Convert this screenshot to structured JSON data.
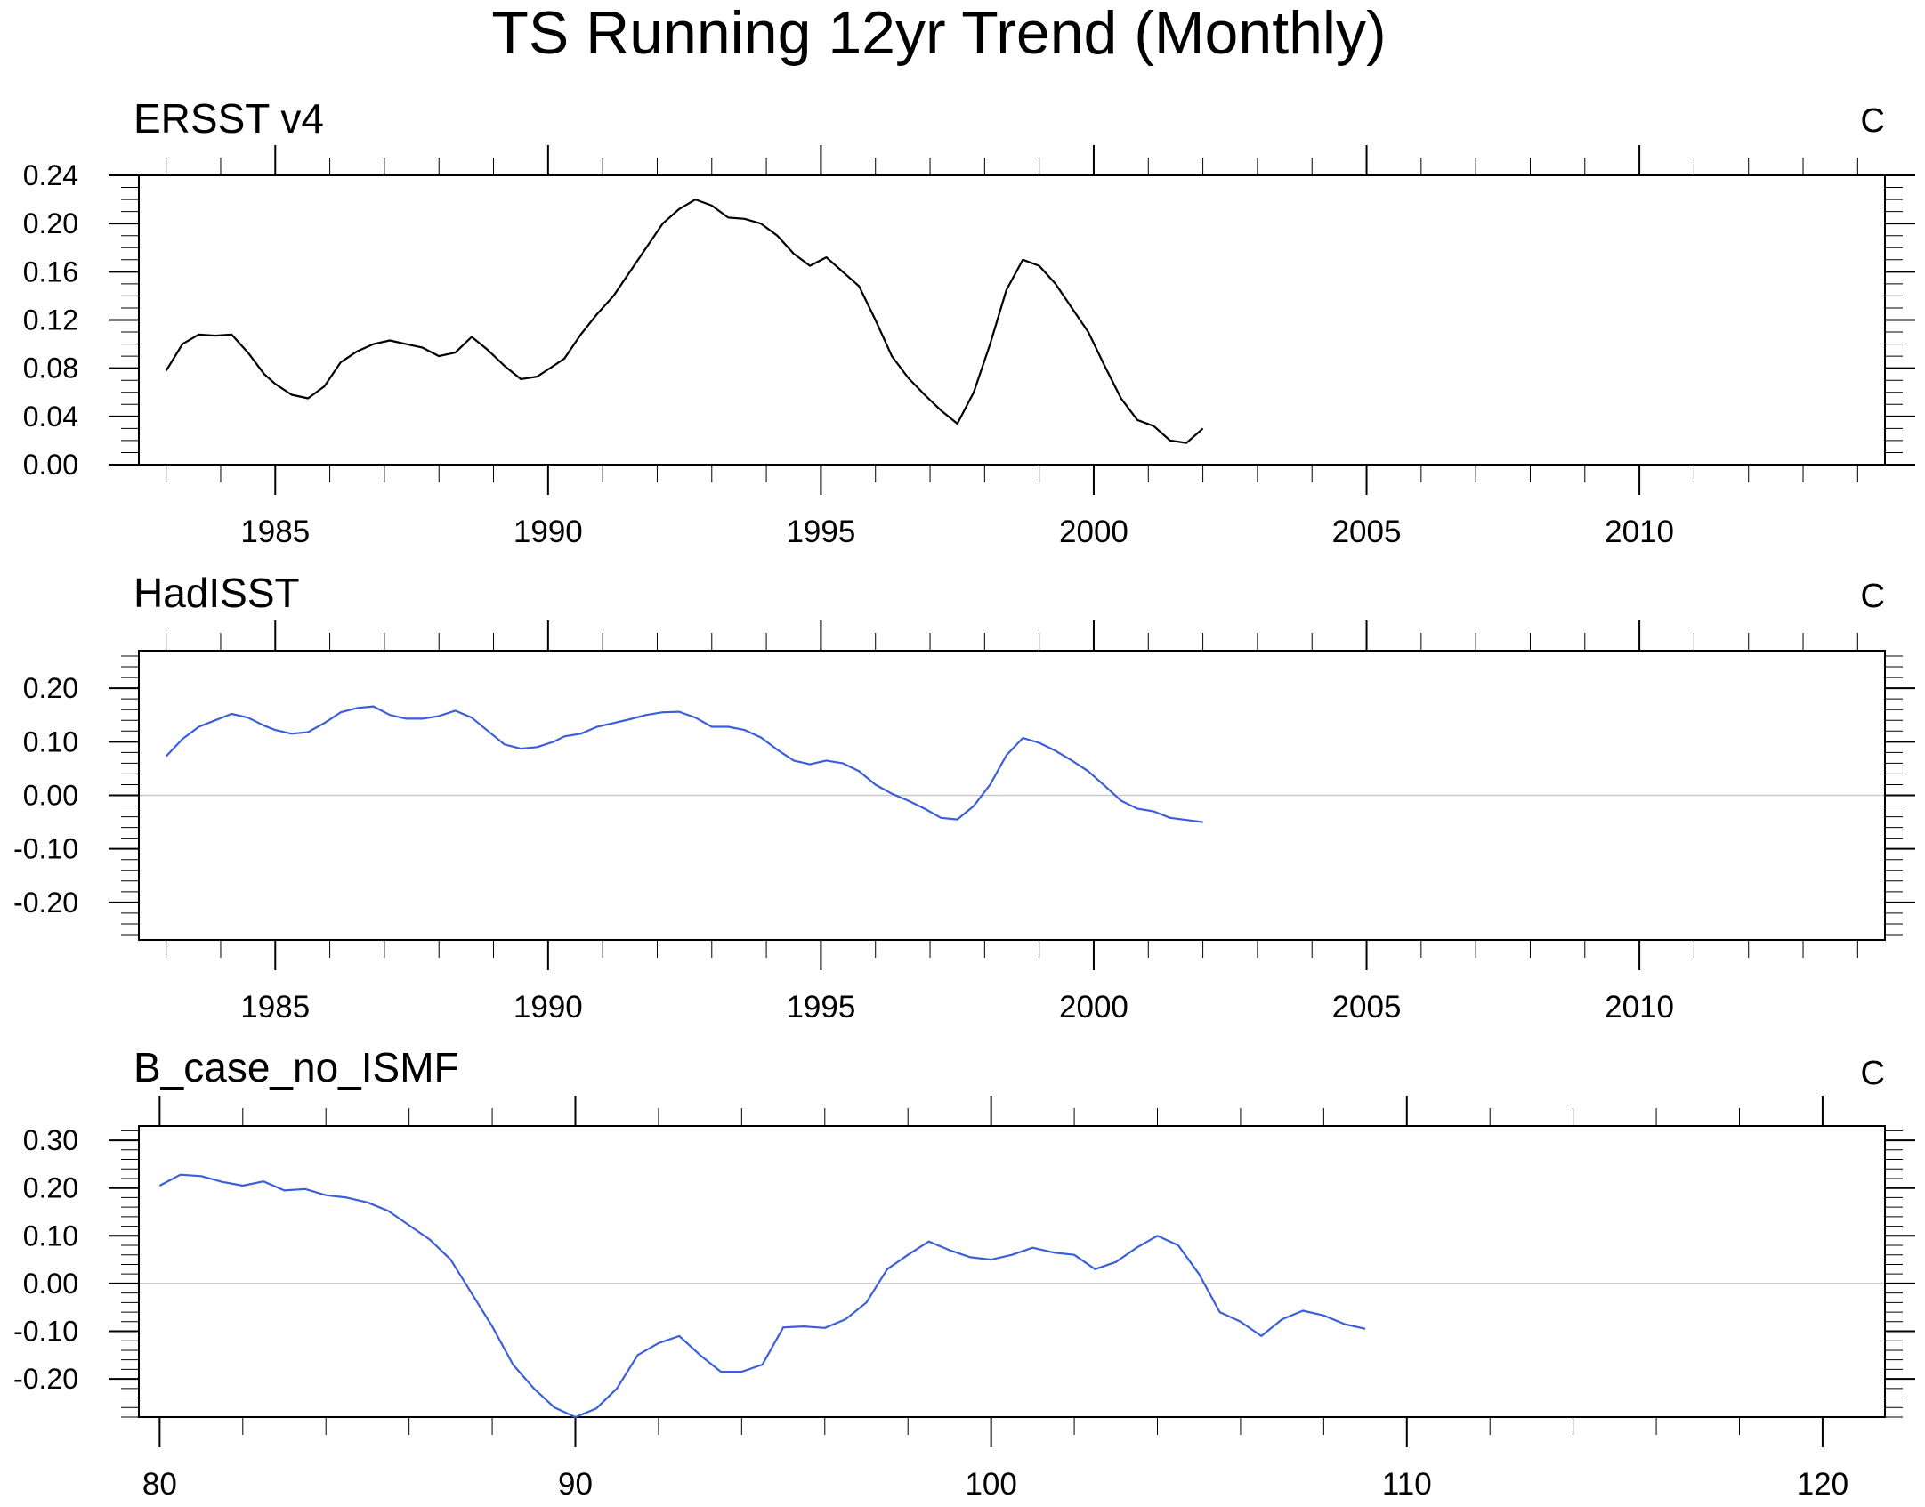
{
  "title": "TS Running 12yr Trend (Monthly)",
  "chart_data": [
    {
      "type": "line",
      "title": "ERSST v4",
      "units": "C",
      "line_color": "#000000",
      "xlim": [
        1982.5,
        2014.5
      ],
      "ylim": [
        0.0,
        0.24
      ],
      "x_ticks": [
        1985,
        1990,
        1995,
        2000,
        2005,
        2010
      ],
      "x_tick_labels": [
        "1985",
        "1990",
        "1995",
        "2000",
        "2005",
        "2010"
      ],
      "x_minor_step": 1,
      "y_ticks": [
        0.0,
        0.04,
        0.08,
        0.12,
        0.16,
        0.2,
        0.24
      ],
      "y_tick_labels": [
        "0.00",
        "0.04",
        "0.08",
        "0.12",
        "0.16",
        "0.20",
        "0.24"
      ],
      "y_minor_step": 0.01,
      "zero_line": false,
      "series": [
        {
          "x": [
            1983.0,
            1983.3,
            1983.6,
            1983.9,
            1984.2,
            1984.5,
            1984.8,
            1985.0,
            1985.3,
            1985.6,
            1985.9,
            1986.2,
            1986.5,
            1986.8,
            1987.1,
            1987.4,
            1987.7,
            1988.0,
            1988.3,
            1988.6,
            1988.9,
            1989.2,
            1989.5,
            1989.8,
            1990.1,
            1990.3,
            1990.6,
            1990.9,
            1991.2,
            1991.5,
            1991.8,
            1992.1,
            1992.4,
            1992.7,
            1993.0,
            1993.3,
            1993.6,
            1993.9,
            1994.2,
            1994.5,
            1994.8,
            1995.1,
            1995.4,
            1995.7,
            1996.0,
            1996.3,
            1996.6,
            1996.9,
            1997.2,
            1997.5,
            1997.8,
            1998.1,
            1998.4,
            1998.7,
            1999.0,
            1999.3,
            1999.6,
            1999.9,
            2000.2,
            2000.5,
            2000.8,
            2001.1,
            2001.4,
            2001.7,
            2002.0
          ],
          "y": [
            0.078,
            0.1,
            0.108,
            0.107,
            0.108,
            0.093,
            0.075,
            0.067,
            0.058,
            0.055,
            0.065,
            0.085,
            0.094,
            0.1,
            0.103,
            0.1,
            0.097,
            0.09,
            0.093,
            0.106,
            0.095,
            0.082,
            0.071,
            0.073,
            0.082,
            0.088,
            0.108,
            0.125,
            0.14,
            0.16,
            0.18,
            0.2,
            0.212,
            0.22,
            0.215,
            0.205,
            0.204,
            0.2,
            0.19,
            0.175,
            0.165,
            0.172,
            0.16,
            0.148,
            0.12,
            0.09,
            0.072,
            0.058,
            0.045,
            0.034,
            0.06,
            0.1,
            0.145,
            0.17,
            0.165,
            0.15,
            0.13,
            0.11,
            0.082,
            0.055,
            0.037,
            0.032,
            0.02,
            0.018,
            0.03
          ]
        }
      ]
    },
    {
      "type": "line",
      "title": "HadISST",
      "units": "C",
      "line_color": "#3a5fd9",
      "xlim": [
        1982.5,
        2014.5
      ],
      "ylim": [
        -0.27,
        0.27
      ],
      "x_ticks": [
        1985,
        1990,
        1995,
        2000,
        2005,
        2010
      ],
      "x_tick_labels": [
        "1985",
        "1990",
        "1995",
        "2000",
        "2005",
        "2010"
      ],
      "x_minor_step": 1,
      "y_ticks": [
        -0.2,
        -0.1,
        0.0,
        0.1,
        0.2
      ],
      "y_tick_labels": [
        "-0.20",
        "-0.10",
        "0.00",
        "0.10",
        "0.20"
      ],
      "y_minor_step": 0.02,
      "zero_line": true,
      "series": [
        {
          "x": [
            1983.0,
            1983.3,
            1983.6,
            1983.9,
            1984.2,
            1984.5,
            1984.8,
            1985.0,
            1985.3,
            1985.6,
            1985.9,
            1986.2,
            1986.5,
            1986.8,
            1987.1,
            1987.4,
            1987.7,
            1988.0,
            1988.3,
            1988.6,
            1988.9,
            1989.2,
            1989.5,
            1989.8,
            1990.1,
            1990.3,
            1990.6,
            1990.9,
            1991.2,
            1991.5,
            1991.8,
            1992.1,
            1992.4,
            1992.7,
            1993.0,
            1993.3,
            1993.6,
            1993.9,
            1994.2,
            1994.5,
            1994.8,
            1995.1,
            1995.4,
            1995.7,
            1996.0,
            1996.3,
            1996.6,
            1996.9,
            1997.2,
            1997.5,
            1997.8,
            1998.1,
            1998.4,
            1998.7,
            1999.0,
            1999.3,
            1999.6,
            1999.9,
            2000.2,
            2000.5,
            2000.8,
            2001.1,
            2001.4,
            2001.7,
            2002.0
          ],
          "y": [
            0.073,
            0.105,
            0.128,
            0.14,
            0.152,
            0.145,
            0.13,
            0.122,
            0.115,
            0.118,
            0.135,
            0.155,
            0.163,
            0.166,
            0.15,
            0.143,
            0.143,
            0.148,
            0.158,
            0.145,
            0.12,
            0.095,
            0.087,
            0.09,
            0.1,
            0.11,
            0.115,
            0.128,
            0.135,
            0.142,
            0.15,
            0.155,
            0.156,
            0.145,
            0.128,
            0.128,
            0.122,
            0.108,
            0.085,
            0.065,
            0.058,
            0.065,
            0.06,
            0.045,
            0.02,
            0.003,
            -0.01,
            -0.025,
            -0.042,
            -0.045,
            -0.02,
            0.02,
            0.075,
            0.107,
            0.098,
            0.083,
            0.065,
            0.045,
            0.018,
            -0.01,
            -0.025,
            -0.03,
            -0.042,
            -0.046,
            -0.05
          ]
        }
      ]
    },
    {
      "type": "line",
      "title": "B_case_no_ISMF",
      "units": "C",
      "line_color": "#3a5fd9",
      "xlim": [
        79.5,
        121.5
      ],
      "ylim": [
        -0.28,
        0.33
      ],
      "x_ticks": [
        80,
        90,
        100,
        110,
        120
      ],
      "x_tick_labels": [
        "80",
        "90",
        "100",
        "110",
        "120"
      ],
      "x_minor_step": 2,
      "y_ticks": [
        -0.2,
        -0.1,
        0.0,
        0.1,
        0.2,
        0.3
      ],
      "y_tick_labels": [
        "-0.20",
        "-0.10",
        "0.00",
        "0.10",
        "0.20",
        "0.30"
      ],
      "y_minor_step": 0.02,
      "zero_line": true,
      "series": [
        {
          "x": [
            80.0,
            80.5,
            81.0,
            81.5,
            82.0,
            82.5,
            83.0,
            83.5,
            84.0,
            84.5,
            85.0,
            85.5,
            86.0,
            86.5,
            87.0,
            87.5,
            88.0,
            88.5,
            89.0,
            89.5,
            90.0,
            90.5,
            91.0,
            91.5,
            92.0,
            92.5,
            93.0,
            93.5,
            94.0,
            94.5,
            95.0,
            95.5,
            96.0,
            96.5,
            97.0,
            97.5,
            98.0,
            98.5,
            99.0,
            99.5,
            100.0,
            100.5,
            101.0,
            101.5,
            102.0,
            102.5,
            103.0,
            103.5,
            104.0,
            104.5,
            105.0,
            105.5,
            106.0,
            106.5,
            107.0,
            107.5,
            108.0,
            108.5,
            109.0
          ],
          "y": [
            0.205,
            0.228,
            0.225,
            0.213,
            0.205,
            0.214,
            0.195,
            0.198,
            0.185,
            0.18,
            0.17,
            0.152,
            0.122,
            0.092,
            0.05,
            -0.02,
            -0.09,
            -0.17,
            -0.22,
            -0.26,
            -0.28,
            -0.262,
            -0.22,
            -0.15,
            -0.125,
            -0.11,
            -0.15,
            -0.185,
            -0.185,
            -0.17,
            -0.092,
            -0.09,
            -0.093,
            -0.075,
            -0.04,
            0.03,
            0.06,
            0.088,
            0.07,
            0.055,
            0.05,
            0.06,
            0.075,
            0.065,
            0.06,
            0.03,
            0.045,
            0.075,
            0.1,
            0.08,
            0.02,
            -0.06,
            -0.08,
            -0.11,
            -0.075,
            -0.057,
            -0.067,
            -0.085,
            -0.095
          ]
        }
      ]
    }
  ]
}
